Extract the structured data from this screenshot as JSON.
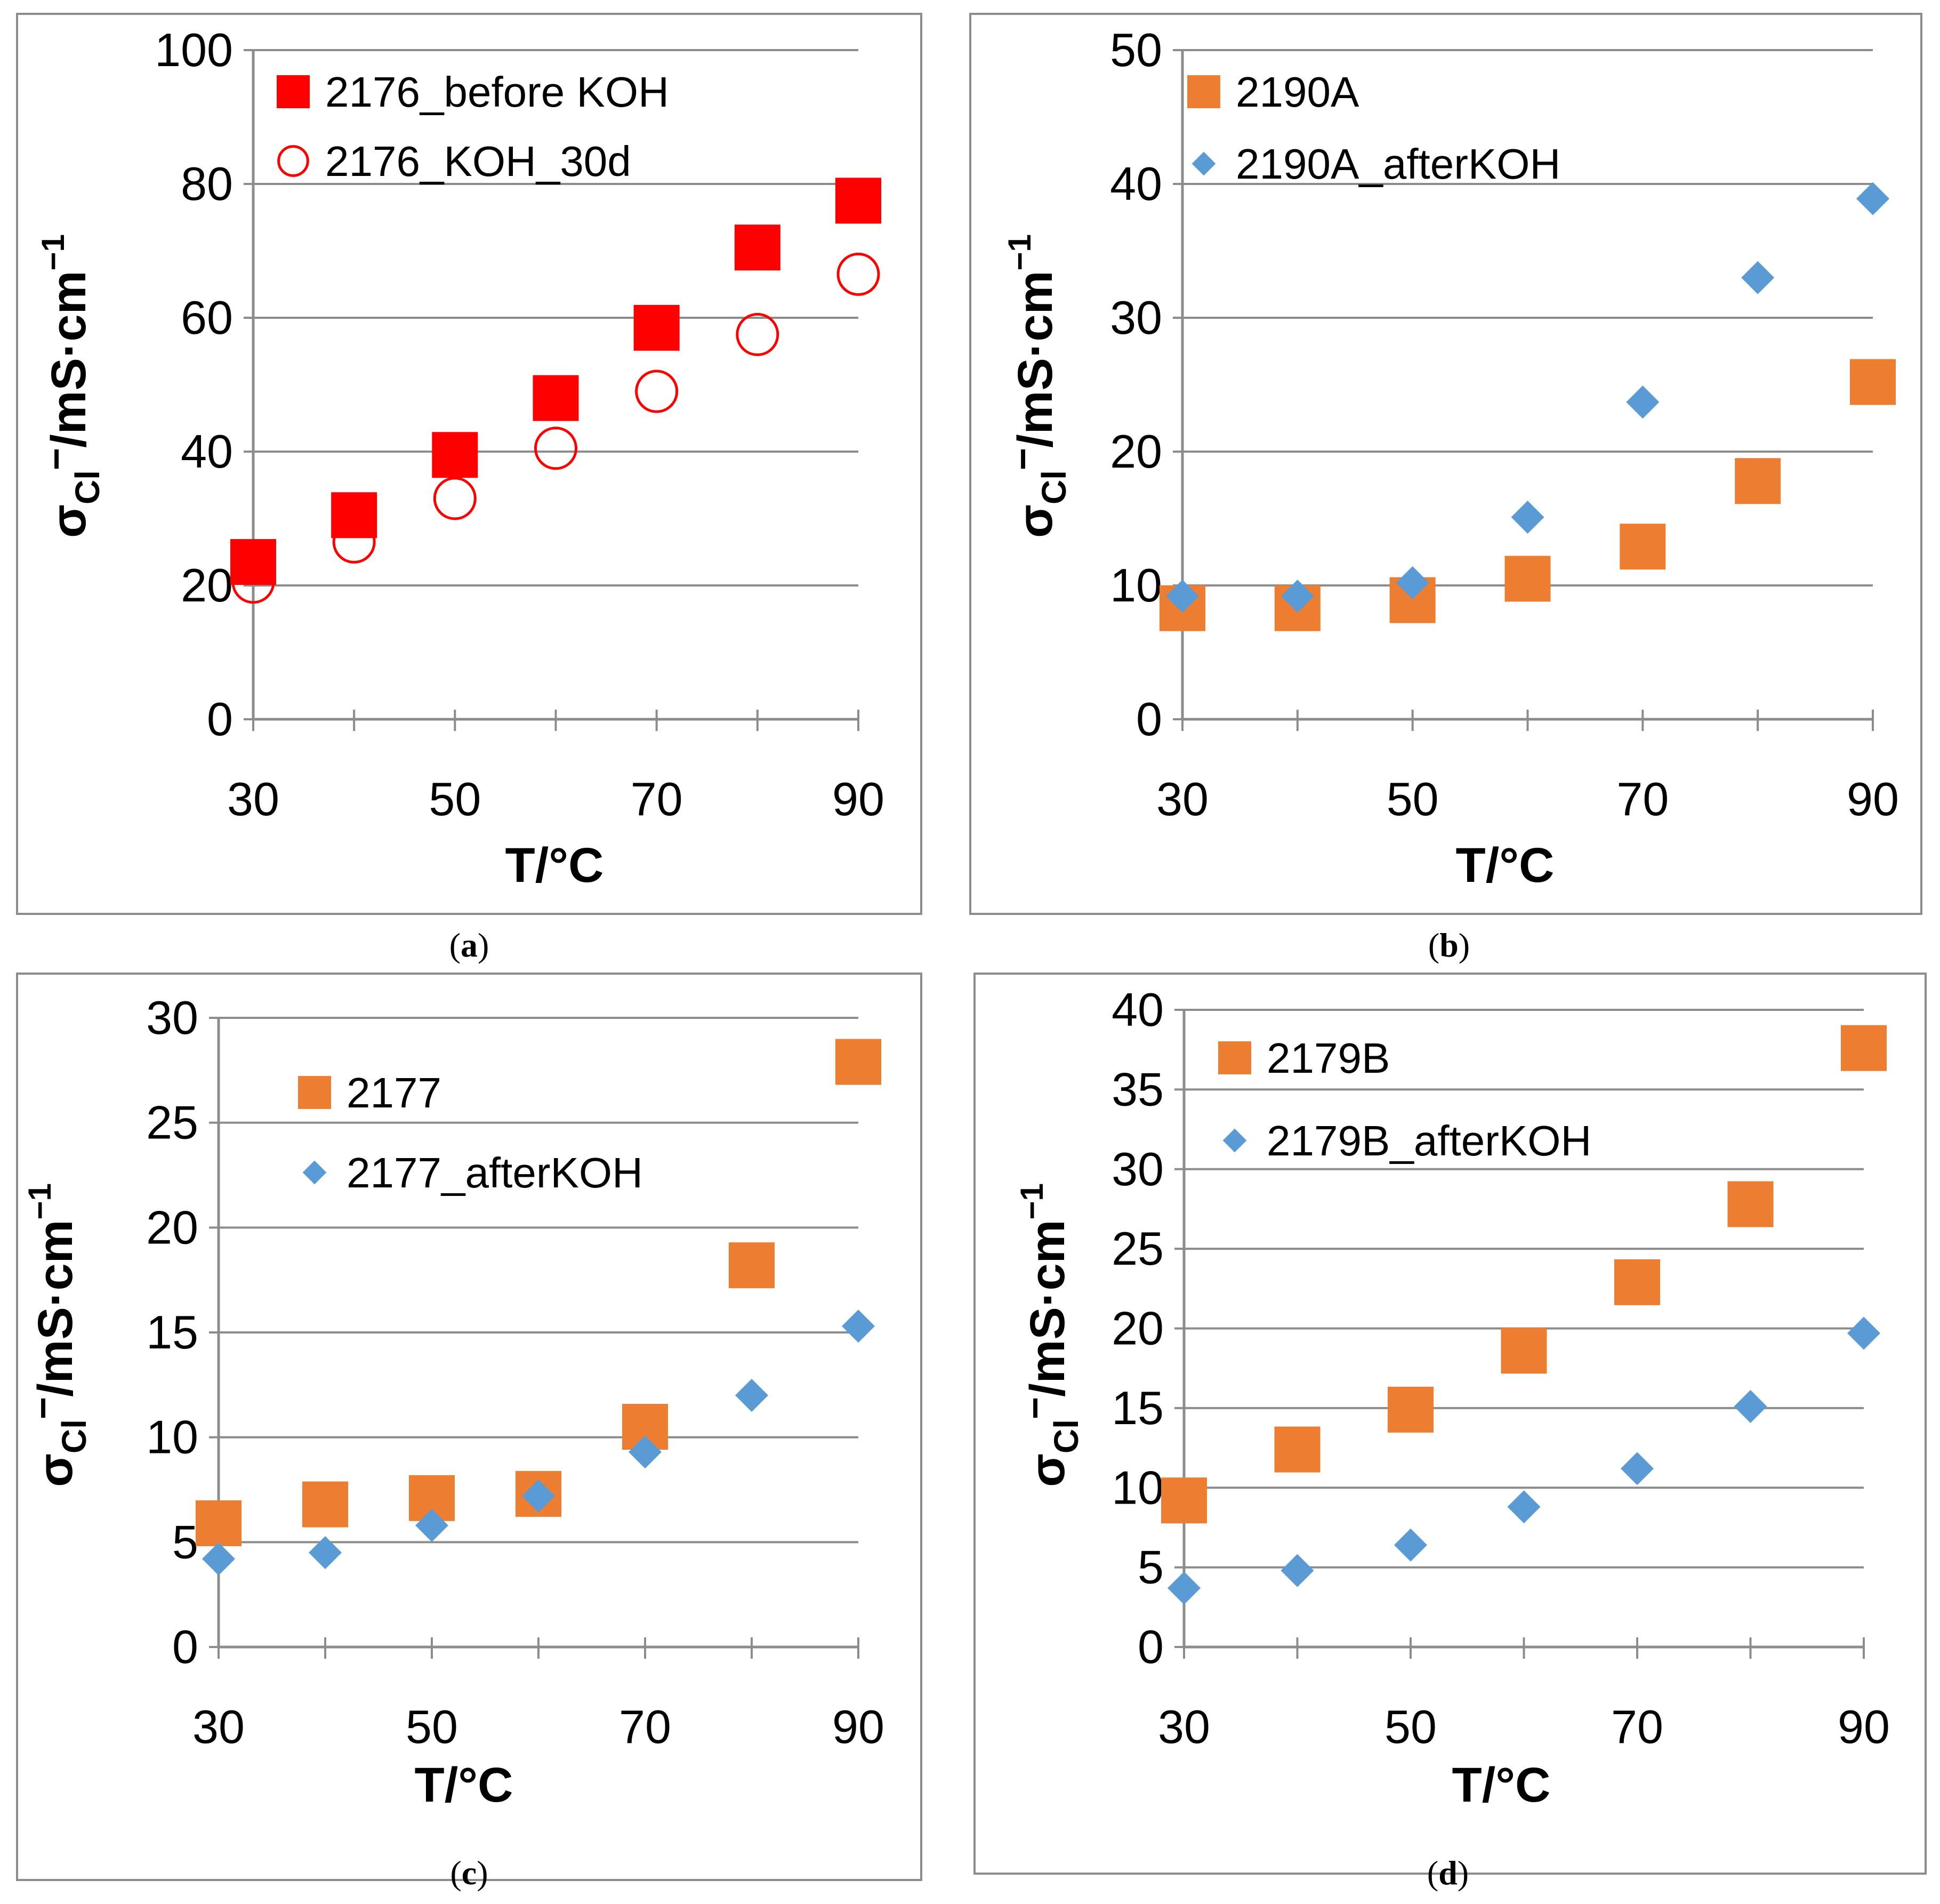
{
  "chart_data": [
    {
      "panel": "a",
      "caption": "(a)",
      "type": "scatter",
      "xlabel": "T/°C",
      "ylabel": "σCl⁻/mS·cm⁻¹",
      "ylabel_parts": {
        "main": "σ",
        "sub": "Cl",
        "sup": "−",
        "unit": "/mS·cm",
        "unit_sup": "−1"
      },
      "xlim": [
        30,
        90
      ],
      "ylim": [
        0,
        100
      ],
      "xticks": [
        30,
        50,
        70,
        90
      ],
      "yticks": [
        0,
        20,
        40,
        60,
        80,
        100
      ],
      "legend_position": "top-left",
      "series": [
        {
          "name": "2176_before KOH",
          "marker": "square-filled",
          "color": "#ff0000",
          "x": [
            30,
            40,
            50,
            60,
            70,
            80,
            90
          ],
          "y": [
            23.5,
            30.5,
            39.5,
            48,
            58.5,
            70.5,
            77.5
          ]
        },
        {
          "name": "2176_KOH_30d",
          "marker": "circle-open",
          "color": "#ff0000",
          "x": [
            30,
            40,
            50,
            60,
            70,
            80,
            90
          ],
          "y": [
            20.5,
            26.5,
            33,
            40.5,
            49,
            57.5,
            66.5
          ]
        }
      ]
    },
    {
      "panel": "b",
      "caption": "(b)",
      "type": "scatter",
      "xlabel": "T/°C",
      "ylabel": "σCl⁻/mS·cm⁻¹",
      "ylabel_parts": {
        "main": "σ",
        "sub": "Cl",
        "sup": "−",
        "unit": "/mS·cm",
        "unit_sup": "−1"
      },
      "xlim": [
        30,
        90
      ],
      "ylim": [
        0,
        50
      ],
      "xticks": [
        30,
        50,
        70,
        90
      ],
      "yticks": [
        0,
        10,
        20,
        30,
        40,
        50
      ],
      "legend_position": "top-left",
      "series": [
        {
          "name": "2190A",
          "marker": "square-filled",
          "color": "#ed7d31",
          "x": [
            30,
            40,
            50,
            60,
            70,
            80,
            90
          ],
          "y": [
            8.3,
            8.3,
            8.9,
            10.5,
            12.9,
            17.8,
            25.2
          ]
        },
        {
          "name": "2190A_afterKOH",
          "marker": "diamond-filled",
          "color": "#5b9bd5",
          "x": [
            30,
            40,
            50,
            60,
            70,
            80,
            90
          ],
          "y": [
            9.2,
            9.2,
            10.2,
            15.1,
            23.7,
            33.0,
            38.9
          ]
        }
      ]
    },
    {
      "panel": "c",
      "caption": "(c)",
      "type": "scatter",
      "xlabel": "T/°C",
      "ylabel": "σCl⁻/mS·cm⁻¹",
      "ylabel_parts": {
        "main": "σ",
        "sub": "Cl",
        "sup": "−",
        "unit": "/mS·cm",
        "unit_sup": "−1"
      },
      "xlim": [
        30,
        90
      ],
      "ylim": [
        0,
        30
      ],
      "xticks": [
        30,
        50,
        70,
        90
      ],
      "yticks": [
        0,
        5,
        10,
        15,
        20,
        25,
        30
      ],
      "legend_position": "top-left",
      "series": [
        {
          "name": "2177",
          "marker": "square-filled",
          "color": "#ed7d31",
          "x": [
            30,
            40,
            50,
            60,
            70,
            80,
            90
          ],
          "y": [
            5.9,
            6.8,
            7.1,
            7.3,
            10.5,
            18.2,
            27.9
          ]
        },
        {
          "name": "2177_afterKOH",
          "marker": "diamond-filled",
          "color": "#5b9bd5",
          "x": [
            30,
            40,
            50,
            60,
            70,
            80,
            90
          ],
          "y": [
            4.2,
            4.5,
            5.8,
            7.2,
            9.3,
            12.0,
            15.3
          ]
        }
      ]
    },
    {
      "panel": "d",
      "caption": "(d)",
      "type": "scatter",
      "xlabel": "T/°C",
      "ylabel": "σCl⁻/mS·cm⁻¹",
      "ylabel_parts": {
        "main": "σ",
        "sub": "Cl",
        "sup": "−",
        "unit": "/mS·cm",
        "unit_sup": "−1"
      },
      "xlim": [
        30,
        90
      ],
      "ylim": [
        0,
        40
      ],
      "xticks": [
        30,
        50,
        70,
        90
      ],
      "yticks": [
        0,
        5,
        10,
        15,
        20,
        25,
        30,
        35,
        40
      ],
      "legend_position": "top-left",
      "series": [
        {
          "name": "2179B",
          "marker": "square-filled",
          "color": "#ed7d31",
          "x": [
            30,
            40,
            50,
            60,
            70,
            80,
            90
          ],
          "y": [
            9.2,
            12.4,
            14.9,
            18.6,
            22.9,
            27.8,
            37.6
          ]
        },
        {
          "name": "2179B_afterKOH",
          "marker": "diamond-filled",
          "color": "#5b9bd5",
          "x": [
            30,
            40,
            50,
            60,
            70,
            80,
            90
          ],
          "y": [
            3.7,
            4.8,
            6.4,
            8.8,
            11.2,
            15.1,
            19.7
          ]
        }
      ]
    }
  ]
}
